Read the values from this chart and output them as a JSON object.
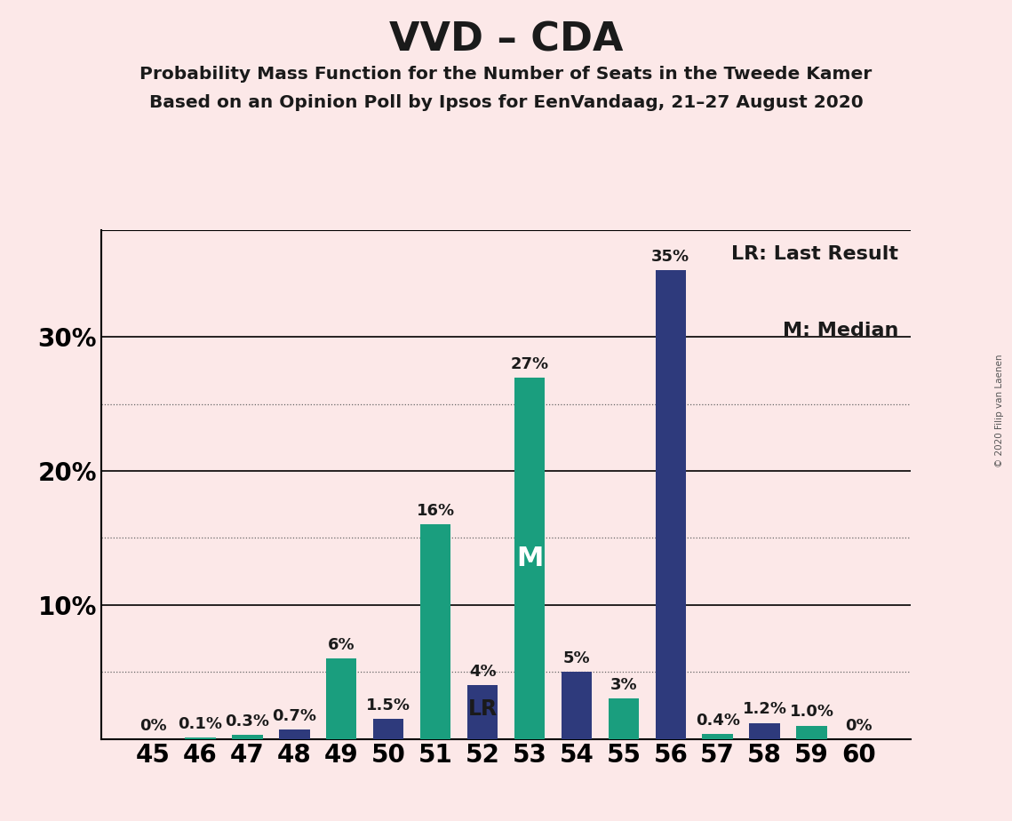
{
  "title": "VVD – CDA",
  "subtitle1": "Probability Mass Function for the Number of Seats in the Tweede Kamer",
  "subtitle2": "Based on an Opinion Poll by Ipsos for EenVandaag, 21–27 August 2020",
  "copyright": "© 2020 Filip van Laenen",
  "seats": [
    45,
    46,
    47,
    48,
    49,
    50,
    51,
    52,
    53,
    54,
    55,
    56,
    57,
    58,
    59,
    60
  ],
  "values": [
    0.0,
    0.1,
    0.3,
    0.7,
    6.0,
    1.5,
    16.0,
    4.0,
    27.0,
    5.0,
    3.0,
    35.0,
    0.4,
    1.2,
    1.0,
    0.0
  ],
  "labels": [
    "0%",
    "0.1%",
    "0.3%",
    "0.7%",
    "6%",
    "1.5%",
    "16%",
    "4%",
    "27%",
    "5%",
    "3%",
    "35%",
    "0.4%",
    "1.2%",
    "1.0%",
    "0%"
  ],
  "colors": [
    "#2e3a7c",
    "#1a9e7e",
    "#1a9e7e",
    "#2e3a7c",
    "#1a9e7e",
    "#2e3a7c",
    "#1a9e7e",
    "#2e3a7c",
    "#1a9e7e",
    "#2e3a7c",
    "#1a9e7e",
    "#2e3a7c",
    "#1a9e7e",
    "#2e3a7c",
    "#1a9e7e",
    "#2e3a7c"
  ],
  "lr_seat": 52,
  "median_seat": 53,
  "background_color": "#fce8e8",
  "legend_lr": "LR: Last Result",
  "legend_m": "M: Median",
  "yticks": [
    0,
    10,
    20,
    30
  ],
  "ymax": 38,
  "extra_gridlines": [
    5,
    15,
    25
  ],
  "solid_gridlines": [
    10,
    20,
    30
  ],
  "title_fontsize": 32,
  "label_fontsize": 13,
  "tick_fontsize": 20
}
